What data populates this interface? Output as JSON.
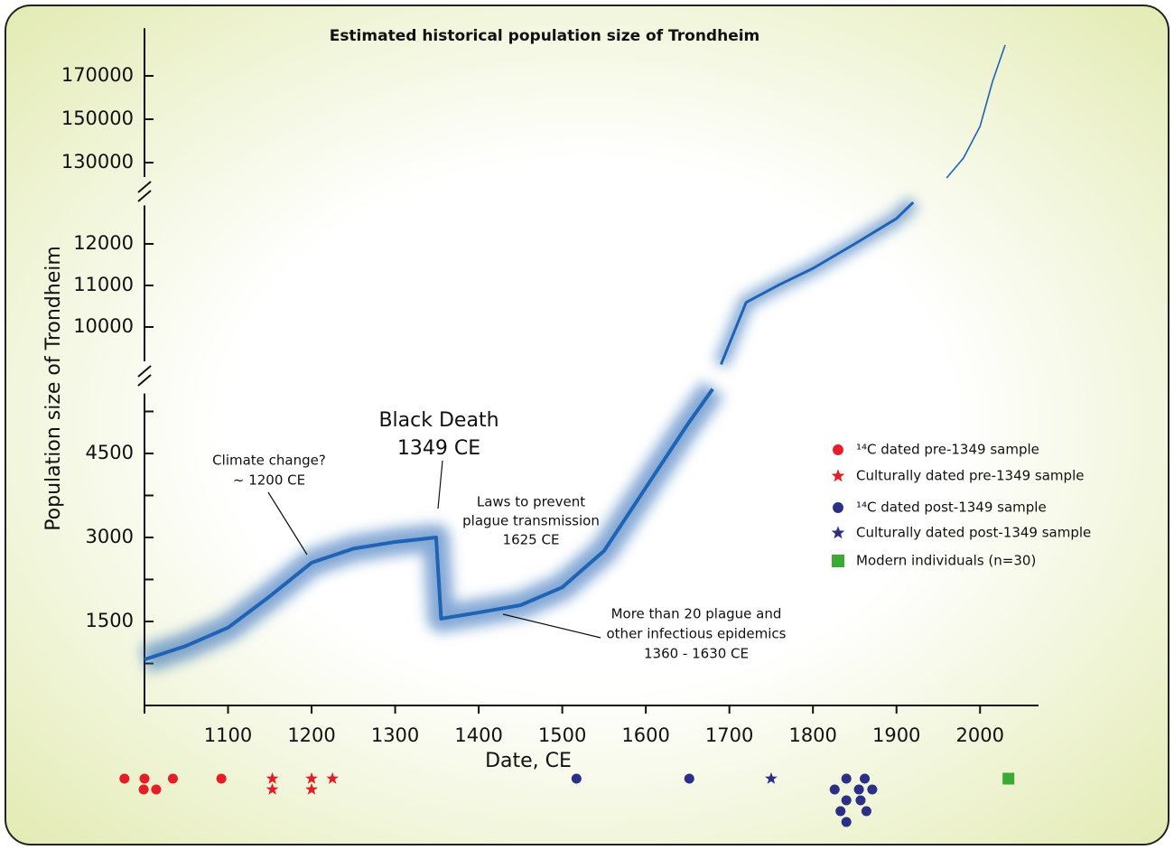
{
  "chart_data": {
    "type": "line",
    "title": "Estimated historical population size of Trondheim",
    "xlabel": "Date, CE",
    "ylabel": "Population size of Trondheim",
    "xlim": [
      1000,
      2070
    ],
    "xticks": [
      1100,
      1200,
      1300,
      1400,
      1500,
      1600,
      1700,
      1800,
      1900,
      2000
    ],
    "y_segments": [
      {
        "ylim": [
          0,
          5700
        ],
        "yticks": [
          1500,
          3000,
          4500
        ],
        "minor_yticks": [
          750,
          2250,
          3750,
          5250
        ]
      },
      {
        "ylim": [
          9000,
          13100
        ],
        "yticks": [
          10000,
          11000,
          12000
        ]
      },
      {
        "ylim": [
          120000,
          192000
        ],
        "yticks": [
          130000,
          150000,
          170000
        ]
      }
    ],
    "series": [
      {
        "color": "#1f63b5",
        "x": [
          1000,
          1050,
          1100,
          1150,
          1200,
          1250,
          1300,
          1349,
          1355,
          1400,
          1450,
          1500,
          1550,
          1600,
          1650,
          1680,
          1685,
          1690,
          1720,
          1760,
          1800,
          1850,
          1900,
          1920,
          1940,
          1960,
          1980,
          2000,
          2015,
          2030
        ],
        "values": [
          820,
          1065,
          1390,
          1950,
          2550,
          2800,
          2920,
          3000,
          1550,
          1660,
          1790,
          2110,
          2760,
          3890,
          5020,
          5650,
          null,
          9100,
          10590,
          11020,
          11410,
          12000,
          12610,
          13000,
          null,
          122900,
          132000,
          146700,
          167500,
          184200
        ]
      }
    ],
    "annotations": [
      {
        "lines": [
          "Climate change?",
          "~ 1200 CE"
        ]
      },
      {
        "lines": [
          "Black Death",
          "1349 CE"
        ]
      },
      {
        "lines": [
          "Laws to prevent",
          "plague transmission",
          "1625 CE"
        ]
      },
      {
        "lines": [
          "More than 20 plague and",
          "other infectious epidemics",
          "1360 - 1630 CE"
        ]
      }
    ],
    "legend": [
      {
        "name": "¹⁴C dated pre-1349 sample",
        "color": "#e41e26",
        "marker": "circle"
      },
      {
        "name": "Culturally dated pre-1349 sample",
        "color": "#e41e26",
        "marker": "star"
      },
      {
        "name": "¹⁴C dated post-1349 sample",
        "color": "#2b2f86",
        "marker": "circle"
      },
      {
        "name": "Culturally dated post-1349 sample",
        "color": "#2b2f86",
        "marker": "star"
      },
      {
        "name": "Modern individuals (n=30)",
        "color": "#3aaa35",
        "marker": "square"
      }
    ],
    "samples": {
      "group": [
        0,
        0,
        0,
        0,
        0,
        0,
        1,
        1,
        1,
        1,
        1,
        2,
        2,
        3,
        2,
        2,
        2,
        2,
        2,
        2,
        2,
        2,
        2,
        2,
        4
      ],
      "x": [
        976,
        1000,
        999,
        1014,
        1034,
        1092,
        1153,
        1153,
        1200,
        1200,
        1225,
        1517,
        1652,
        1750,
        1840,
        1862,
        1826,
        1855,
        1840,
        1871,
        1833,
        1857,
        1840,
        1864,
        2034
      ]
    }
  }
}
